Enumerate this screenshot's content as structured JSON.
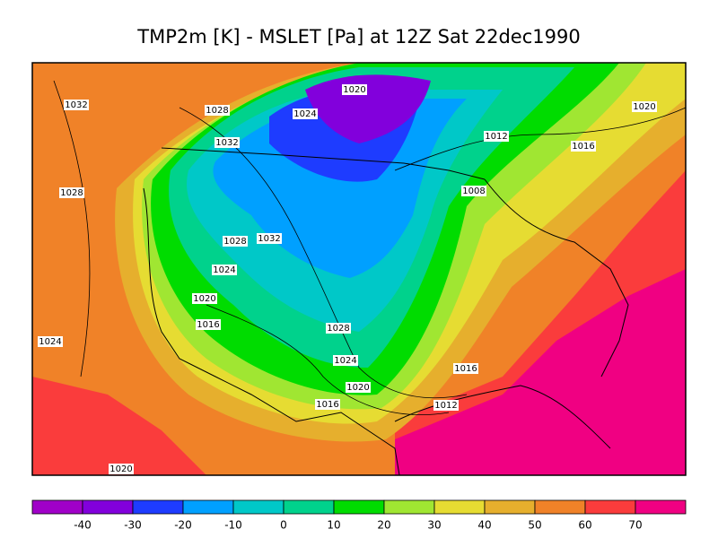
{
  "title": "TMP2m [K] - MSLET [Pa] at 12Z Sat 22dec1990",
  "contour_labels": [
    1020,
    1032,
    1028,
    1024,
    1020,
    1012,
    1032,
    1016,
    1028,
    1008,
    1028,
    1032,
    1024,
    1020,
    1016,
    1028,
    1024,
    1024,
    1016,
    1020,
    1016,
    1012,
    1020
  ],
  "colorbar": {
    "colors": [
      "#a000c8",
      "#8200dc",
      "#1e3cff",
      "#00a0ff",
      "#00c8c8",
      "#00d28c",
      "#00dc00",
      "#a0e632",
      "#e6dc32",
      "#e6af2d",
      "#f08228",
      "#fa3c3c",
      "#f00082"
    ],
    "ticks": [
      -40,
      -30,
      -20,
      -10,
      0,
      10,
      20,
      30,
      40,
      50,
      60,
      70
    ]
  }
}
